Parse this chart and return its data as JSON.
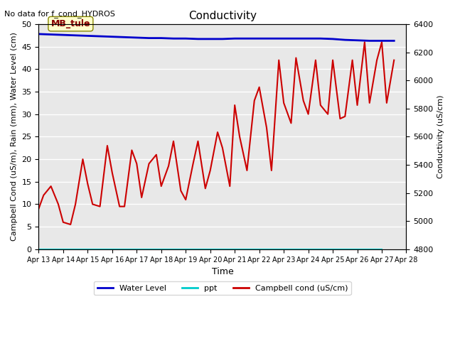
{
  "title": "Conductivity",
  "top_left_text": "No data for f_cond_HYDROS",
  "xlabel": "Time",
  "ylabel_left": "Campbell Cond (uS/m), Rain (mm), Water Level (cm)",
  "ylabel_right": "Conductivity (uS/cm)",
  "annotation_box": "MB_tule",
  "xlim_days": [
    0,
    15
  ],
  "ylim_left": [
    0,
    50
  ],
  "ylim_right": [
    4800,
    6400
  ],
  "xtick_labels": [
    "Apr 13",
    "Apr 14",
    "Apr 15",
    "Apr 16",
    "Apr 17",
    "Apr 18",
    "Apr 19",
    "Apr 20",
    "Apr 21",
    "Apr 22",
    "Apr 23",
    "Apr 24",
    "Apr 25",
    "Apr 26",
    "Apr 27",
    "Apr 28"
  ],
  "yticks_left": [
    0,
    5,
    10,
    15,
    20,
    25,
    30,
    35,
    40,
    45,
    50
  ],
  "yticks_right": [
    4800,
    5000,
    5200,
    5400,
    5600,
    5800,
    6000,
    6200,
    6400
  ],
  "bg_color": "#e8e8e8",
  "grid_color": "#ffffff",
  "water_level_color": "#0000cc",
  "ppt_color": "#00cccc",
  "campbell_color": "#cc0000",
  "legend_entries": [
    "Water Level",
    "ppt",
    "Campbell cond (uS/cm)"
  ],
  "water_level_x": [
    0,
    0.5,
    1,
    1.5,
    2,
    2.5,
    3,
    3.5,
    4,
    4.5,
    5,
    5.5,
    6,
    6.5,
    7,
    7.5,
    8,
    8.5,
    9,
    9.5,
    10,
    10.5,
    11,
    11.5,
    12,
    12.5,
    13,
    13.5,
    14,
    14.5
  ],
  "water_level_y": [
    47.8,
    47.7,
    47.6,
    47.5,
    47.4,
    47.3,
    47.2,
    47.1,
    47.0,
    46.9,
    46.9,
    46.8,
    46.8,
    46.7,
    46.7,
    46.7,
    46.8,
    46.8,
    46.8,
    46.8,
    46.8,
    46.8,
    46.8,
    46.8,
    46.7,
    46.5,
    46.4,
    46.3,
    46.3,
    46.3
  ],
  "ppt_x": [
    0,
    1,
    2,
    3,
    4,
    5,
    6,
    7,
    8,
    9,
    10,
    11,
    12,
    13,
    14
  ],
  "ppt_y": [
    0,
    0,
    0,
    0,
    0,
    0,
    0,
    0,
    0,
    0,
    0,
    0,
    0,
    0,
    0
  ],
  "campbell_x": [
    0,
    0.2,
    0.5,
    0.8,
    1.0,
    1.3,
    1.5,
    1.8,
    2.0,
    2.2,
    2.5,
    2.8,
    3.0,
    3.3,
    3.5,
    3.8,
    4.0,
    4.2,
    4.5,
    4.8,
    5.0,
    5.3,
    5.5,
    5.8,
    6.0,
    6.3,
    6.5,
    6.8,
    7.0,
    7.3,
    7.5,
    7.8,
    8.0,
    8.2,
    8.5,
    8.8,
    9.0,
    9.3,
    9.5,
    9.8,
    10.0,
    10.3,
    10.5,
    10.8,
    11.0,
    11.3,
    11.5,
    11.8,
    12.0,
    12.3,
    12.5,
    12.8,
    13.0,
    13.3,
    13.5,
    13.8,
    14.0,
    14.2,
    14.5
  ],
  "campbell_y": [
    9,
    12,
    14,
    10,
    6,
    5.5,
    10,
    20,
    14.5,
    10,
    9.5,
    23,
    17,
    9.5,
    9.5,
    22,
    19,
    11.5,
    19,
    21,
    14,
    18.5,
    24,
    13,
    11,
    19,
    24,
    13.5,
    17.5,
    26,
    22.5,
    14,
    32,
    25,
    17.5,
    33,
    36,
    27,
    17.5,
    42,
    32.5,
    28,
    42.5,
    33,
    30,
    42,
    32,
    30,
    42,
    29,
    29.5,
    42,
    32,
    46,
    32.5,
    42,
    46,
    32.5,
    42
  ]
}
